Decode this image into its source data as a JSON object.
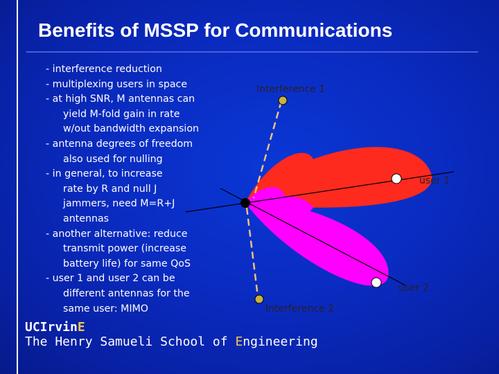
{
  "slide": {
    "title": "Benefits of MSSP for Communications"
  },
  "bullets": [
    {
      "lines": [
        "- interference reduction"
      ]
    },
    {
      "lines": [
        "- multiplexing users in space"
      ]
    },
    {
      "lines": [
        "- at high SNR, M antennas can",
        "yield M-fold gain in rate",
        "w/out bandwidth expansion"
      ]
    },
    {
      "lines": [
        "- antenna degrees of freedom",
        "also used for nulling"
      ]
    },
    {
      "lines": [
        "- in general, to increase",
        "rate by R and null J",
        "jammers, need M=R+J",
        "antennas"
      ]
    },
    {
      "lines": [
        "- another alternative: reduce",
        "transmit power (increase",
        "battery life) for same QoS"
      ]
    },
    {
      "lines": [
        "- user 1 and user 2 can be",
        "different antennas for the",
        "same user: MIMO"
      ]
    }
  ],
  "diagram": {
    "labels": {
      "interference1": "Interference 1",
      "interference2": "Interference 2",
      "user1": "user 1",
      "user2": "user 2"
    },
    "colors": {
      "beam_user1": "#ff2a1e",
      "beam_user2": "#ff00ff",
      "interferer_dot": "#c9b23c",
      "user_dot": "#ffffff",
      "array_dot": "#000000",
      "dashed_link": "#f0c080"
    }
  },
  "footer": {
    "brand_prefix": "UCIrvin",
    "brand_accent": "E",
    "school_prefix": "The Henry Samueli School of ",
    "school_accent": "E",
    "school_suffix": "ngineering"
  }
}
